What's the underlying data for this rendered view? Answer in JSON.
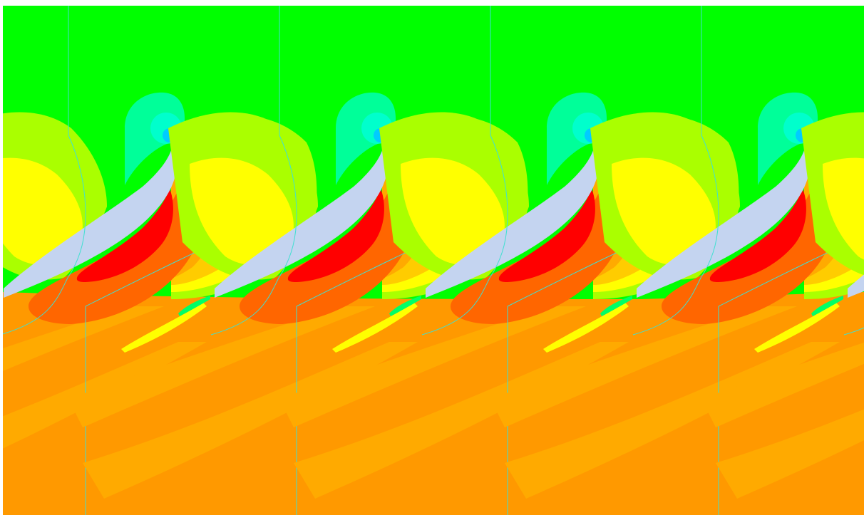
{
  "viewport": {
    "background_color": "#ffffff"
  },
  "contour_plot": {
    "blade_count_visible": 4,
    "colors": {
      "freestream_top": "#00ff00",
      "light_green": "#66ff00",
      "yellow_green": "#aaff00",
      "yellow": "#ffff00",
      "light_orange": "#ffcc00",
      "orange_band": "#ffaa00",
      "orange": "#ff9900",
      "dark_orange": "#ff6600",
      "red": "#ff0000",
      "cyan_green": "#00ff99",
      "cyan": "#00ffcc",
      "blue_core": "#00ccff",
      "blade_surface": "#c4d4f0",
      "boundary_lines": "#40e0d0"
    }
  }
}
